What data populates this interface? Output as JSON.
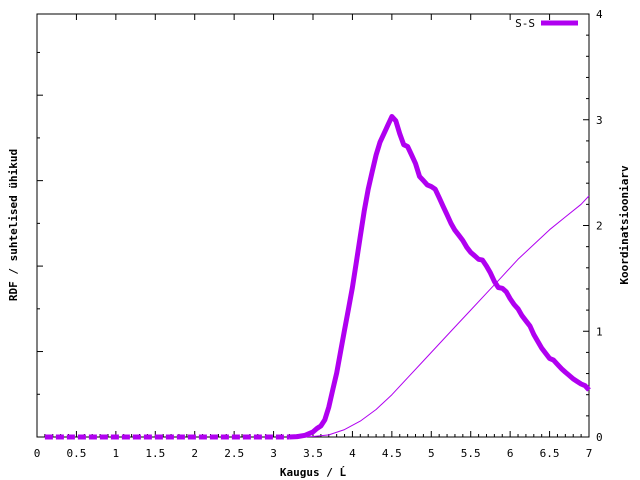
{
  "chart_data": {
    "type": "line",
    "title": "",
    "xlabel": "Kaugus / Ĺ",
    "ylabel": "RDF / suhtelised ühikud",
    "y2label": "Koordinatsiooniarv",
    "xlim": [
      0,
      7
    ],
    "y2lim": [
      0,
      4
    ],
    "xticks": [
      "0",
      "0.5",
      "1",
      "1.5",
      "2",
      "2.5",
      "3",
      "3.5",
      "4",
      "4.5",
      "5",
      "5.5",
      "6",
      "6.5",
      "7"
    ],
    "y2ticks": [
      "0",
      "1",
      "2",
      "3",
      "4"
    ],
    "grid": false,
    "legend": {
      "position": "top-right",
      "label": "S-S"
    },
    "series": [
      {
        "name": "S-S",
        "axis": "left",
        "color": "#b000f0",
        "x": [
          0.1,
          0.5,
          1,
          1.5,
          2,
          2.5,
          3,
          3.2,
          3.3,
          3.4,
          3.5,
          3.55,
          3.6,
          3.65,
          3.7,
          3.75,
          3.8,
          3.85,
          3.9,
          3.95,
          4.0,
          4.05,
          4.1,
          4.15,
          4.2,
          4.25,
          4.3,
          4.35,
          4.4,
          4.45,
          4.5,
          4.55,
          4.6,
          4.65,
          4.7,
          4.75,
          4.8,
          4.85,
          4.9,
          4.95,
          5.0,
          5.05,
          5.1,
          5.15,
          5.2,
          5.25,
          5.3,
          5.35,
          5.4,
          5.45,
          5.5,
          5.55,
          5.6,
          5.65,
          5.7,
          5.75,
          5.8,
          5.85,
          5.9,
          5.95,
          6.0,
          6.05,
          6.1,
          6.15,
          6.2,
          6.25,
          6.3,
          6.35,
          6.4,
          6.45,
          6.5,
          6.55,
          6.6,
          6.65,
          6.7,
          6.75,
          6.8,
          6.85,
          6.9,
          6.95,
          7.0
        ],
        "values": [
          0,
          0,
          0,
          0,
          0,
          0,
          0,
          0,
          0.005,
          0.02,
          0.06,
          0.1,
          0.13,
          0.2,
          0.35,
          0.55,
          0.75,
          1.0,
          1.25,
          1.5,
          1.75,
          2.05,
          2.35,
          2.65,
          2.9,
          3.1,
          3.3,
          3.45,
          3.55,
          3.65,
          3.75,
          3.7,
          3.55,
          3.42,
          3.4,
          3.3,
          3.2,
          3.05,
          3.0,
          2.95,
          2.93,
          2.9,
          2.8,
          2.7,
          2.6,
          2.5,
          2.42,
          2.36,
          2.3,
          2.22,
          2.16,
          2.12,
          2.08,
          2.07,
          2.0,
          1.92,
          1.82,
          1.75,
          1.74,
          1.7,
          1.62,
          1.55,
          1.5,
          1.42,
          1.36,
          1.3,
          1.2,
          1.12,
          1.04,
          0.98,
          0.92,
          0.9,
          0.85,
          0.8,
          0.76,
          0.72,
          0.68,
          0.65,
          0.62,
          0.6,
          0.55
        ]
      },
      {
        "name": "",
        "axis": "right",
        "color": "#b000f0",
        "x": [
          3.3,
          3.5,
          3.7,
          3.9,
          4.1,
          4.3,
          4.5,
          4.7,
          4.9,
          5.1,
          5.3,
          5.5,
          5.7,
          5.9,
          6.1,
          6.3,
          6.5,
          6.7,
          6.9,
          7.0
        ],
        "values": [
          0,
          0.005,
          0.02,
          0.07,
          0.15,
          0.26,
          0.4,
          0.56,
          0.72,
          0.88,
          1.04,
          1.2,
          1.36,
          1.52,
          1.68,
          1.82,
          1.96,
          2.08,
          2.2,
          2.28
        ]
      }
    ]
  }
}
